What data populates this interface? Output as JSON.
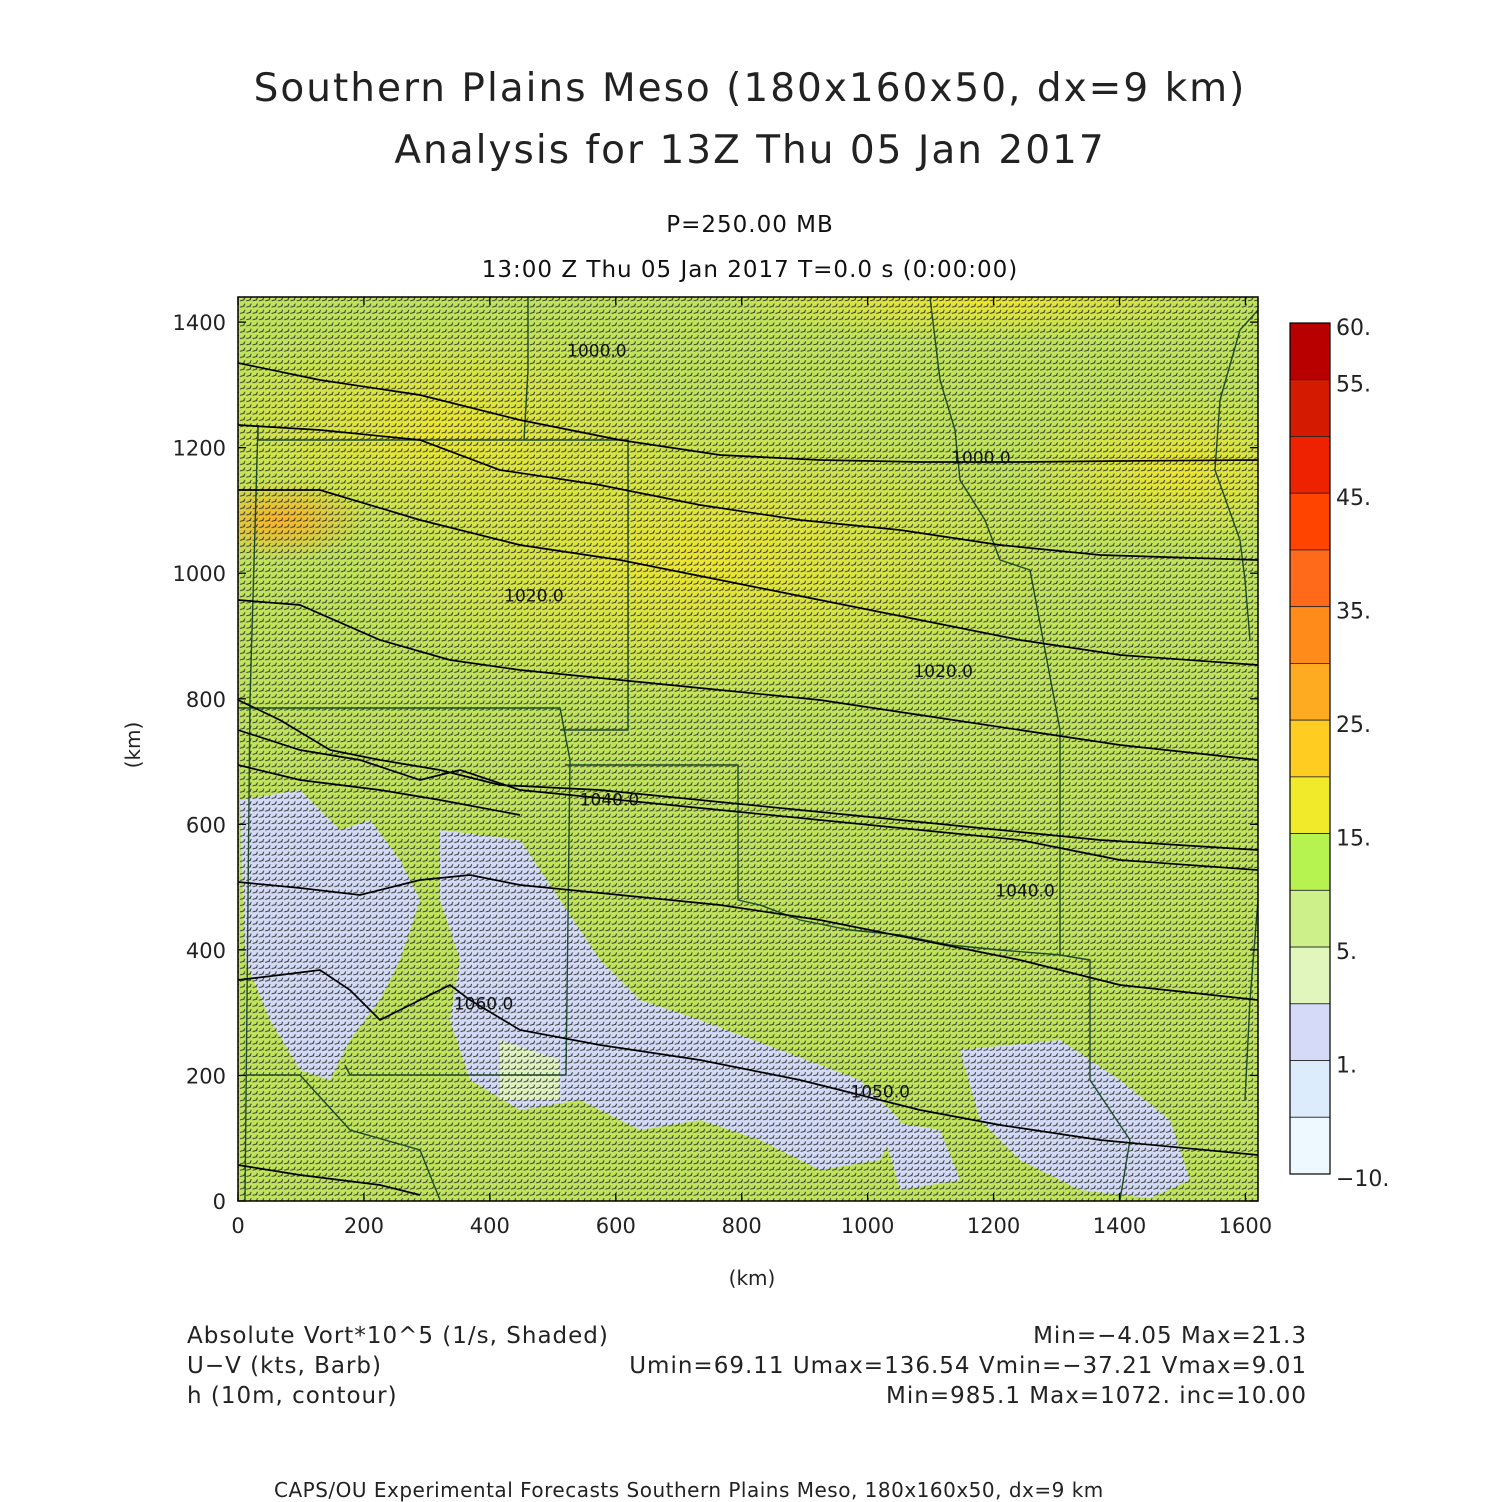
{
  "title": {
    "line1": "Southern Plains Meso (180x160x50, dx=9 km)",
    "line2": "Analysis for 13Z Thu 05 Jan 2017"
  },
  "level": "P=250.00 MB",
  "valid_time": "13:00 Z Thu 05 Jan 2017    T=0.0 s (0:00:00)",
  "axes": {
    "xlabel": "(km)",
    "ylabel": "(km)",
    "xlim": [
      0,
      1620
    ],
    "ylim": [
      0,
      1440
    ],
    "xticks": [
      0,
      200,
      400,
      600,
      800,
      1000,
      1200,
      1400,
      1600
    ],
    "yticks": [
      0,
      200,
      400,
      600,
      800,
      1000,
      1200,
      1400
    ]
  },
  "colorbar": {
    "labels": [
      "60.",
      "55.",
      "45.",
      "35.",
      "25.",
      "15.",
      "5.",
      "1.",
      "−10."
    ],
    "colors": [
      "#b80000",
      "#d41a00",
      "#ee2200",
      "#ff4400",
      "#ff6a1a",
      "#ff8c1a",
      "#ffab22",
      "#ffcc22",
      "#f0ea2a",
      "#b6f250",
      "#cef08a",
      "#e0f6bc",
      "#d4daf8",
      "#dcecfc",
      "#eef8ff"
    ]
  },
  "contours": {
    "labels": [
      {
        "text": "1000.0",
        "x": 570,
        "y": 1345
      },
      {
        "text": "1000.0",
        "x": 1180,
        "y": 1175
      },
      {
        "text": "1020.0",
        "x": 470,
        "y": 955
      },
      {
        "text": "1020.0",
        "x": 1120,
        "y": 835
      },
      {
        "text": "1040.0",
        "x": 590,
        "y": 630
      },
      {
        "text": "1040.0",
        "x": 1250,
        "y": 485
      },
      {
        "text": "1060.0",
        "x": 390,
        "y": 305
      },
      {
        "text": "1050.0",
        "x": 1020,
        "y": 165
      }
    ]
  },
  "legend": {
    "field1_label": "Absolute Vort*10^5 (1/s, Shaded)",
    "field1_stats": "Min=−4.05  Max=21.3",
    "field2_label": "U−V (kts, Barb)",
    "field2_stats": "Umin=69.11  Umax=136.54  Vmin=−37.21  Vmax=9.01",
    "field3_label": "h (10m, contour)",
    "field3_stats": "Min=985.1  Max=1072.  inc=10.00"
  },
  "footer": "CAPS/OU Experimental Forecasts  Southern Plains Meso, 180x160x50, dx=9 km"
}
